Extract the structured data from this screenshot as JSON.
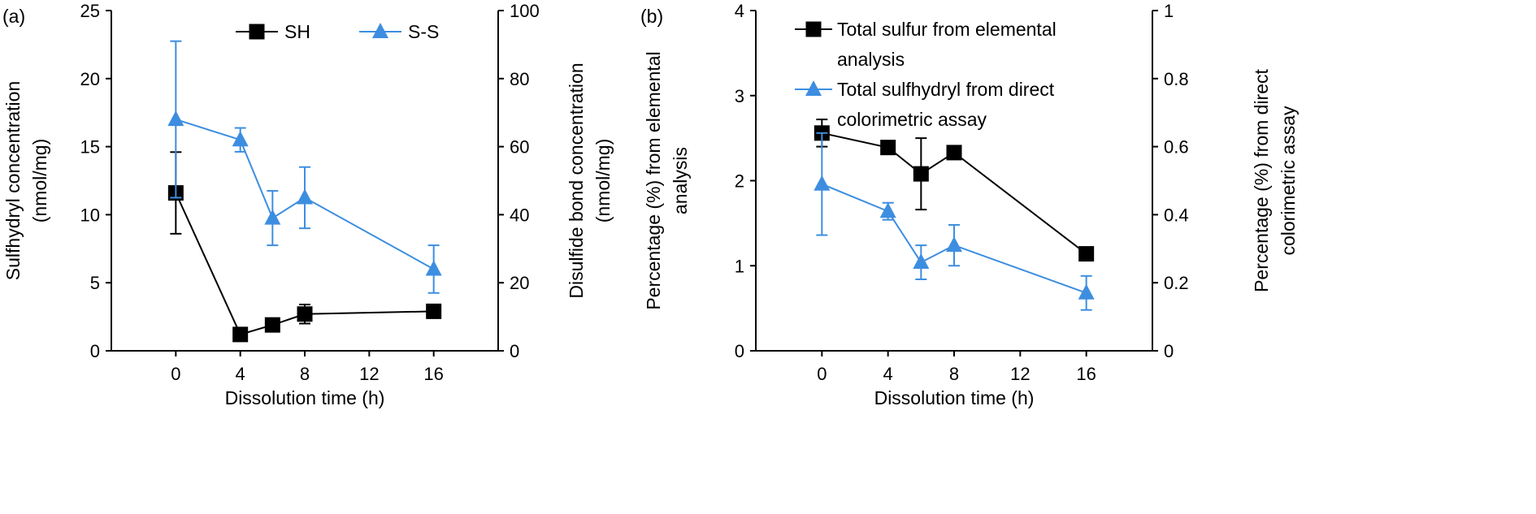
{
  "chart_data": [
    {
      "panel_label": "(a)",
      "type": "line",
      "xlabel": "Dissolution time (h)",
      "xticks": [
        0,
        4,
        8,
        12,
        16
      ],
      "xlim": [
        -4,
        20
      ],
      "ylabel_left": [
        "Sulfhydryl concentration",
        "(nmol/mg)"
      ],
      "ylim_left": [
        0,
        25
      ],
      "yticks_left": [
        0,
        5,
        10,
        15,
        20,
        25
      ],
      "ylabel_right": [
        "Disulfide bond concentration",
        "(nmol/mg)"
      ],
      "ylim_right": [
        0,
        100
      ],
      "yticks_right": [
        0,
        20,
        40,
        60,
        80,
        100
      ],
      "legend_position": "top-center",
      "series": [
        {
          "name": "SH",
          "axis": "left",
          "marker": "square",
          "color": "#000000",
          "x": [
            0,
            4,
            6,
            8,
            16
          ],
          "y": [
            11.6,
            1.2,
            1.9,
            2.7,
            2.9
          ],
          "err": [
            3.0,
            0.3,
            0.3,
            0.7,
            0.3
          ]
        },
        {
          "name": "S-S",
          "axis": "right",
          "marker": "triangle",
          "color": "#3d8ee0",
          "x": [
            0,
            4,
            6,
            8,
            16
          ],
          "y": [
            68,
            62,
            39,
            45,
            24
          ],
          "err": [
            23,
            3.5,
            8,
            9,
            7
          ]
        }
      ]
    },
    {
      "panel_label": "(b)",
      "type": "line",
      "xlabel": "Dissolution time (h)",
      "xticks": [
        0,
        4,
        8,
        12,
        16
      ],
      "xlim": [
        -4,
        20
      ],
      "ylabel_left": [
        "Percentage (%) from elemental",
        "analysis"
      ],
      "ylim_left": [
        0,
        4
      ],
      "yticks_left": [
        0,
        1,
        2,
        3,
        4
      ],
      "ylabel_right": [
        "Percentage (%) from direct",
        "colorimetric assay"
      ],
      "ylim_right": [
        0,
        1
      ],
      "yticks_right": [
        0,
        0.2,
        0.4,
        0.6,
        0.8,
        1
      ],
      "legend_position": "top-left",
      "series": [
        {
          "name": [
            "Total sulfur from elemental",
            "analysis"
          ],
          "axis": "left",
          "marker": "square",
          "color": "#000000",
          "x": [
            0,
            4,
            6,
            8,
            16
          ],
          "y": [
            2.56,
            2.39,
            2.08,
            2.33,
            1.14
          ],
          "err": [
            0.16,
            0.05,
            0.42,
            0.05,
            0.05
          ]
        },
        {
          "name": [
            "Total sulfhydryl from direct",
            "colorimetric assay"
          ],
          "axis": "right",
          "marker": "triangle",
          "color": "#3d8ee0",
          "x": [
            0,
            4,
            6,
            8,
            16
          ],
          "y": [
            0.49,
            0.41,
            0.26,
            0.31,
            0.17
          ],
          "err": [
            0.15,
            0.025,
            0.05,
            0.06,
            0.05
          ]
        }
      ]
    }
  ]
}
